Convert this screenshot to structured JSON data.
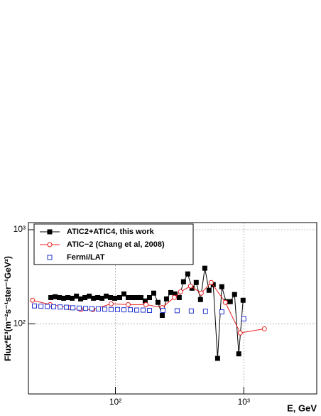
{
  "chart_data": {
    "type": "line",
    "x_label": "E, GeV",
    "y_label": "Flux*E³(m⁻²s⁻¹ster⁻¹GeV²)",
    "log_x": true,
    "log_y": true,
    "grid": true,
    "legend_position": "upper-left",
    "xlim": [
      21,
      3700
    ],
    "ylim": [
      18,
      1190
    ],
    "xticks": [
      {
        "value": 100,
        "label": "10²"
      },
      {
        "value": 1000,
        "label": "10³"
      }
    ],
    "yticks": [
      {
        "value": 100,
        "label": "10²"
      },
      {
        "value": 1000,
        "label": "10³"
      }
    ],
    "series": [
      {
        "name": "ATIC2+ATIC4, this work",
        "color": "#000000",
        "marker": "filled-square",
        "connect": true,
        "x": [
          31.4,
          33.9,
          36.6,
          39.5,
          42.6,
          46.0,
          49.7,
          53.6,
          57.9,
          62.5,
          67.5,
          72.8,
          78.6,
          84.8,
          91.5,
          98.8,
          107.9,
          116.5,
          125.7,
          135.7,
          146.5,
          158.1,
          170.6,
          184.2,
          198.8,
          214.5,
          231.6,
          250,
          270,
          291,
          314,
          339,
          366,
          395,
          426,
          460,
          497,
          536,
          578,
          625,
          674,
          728,
          785,
          847,
          914,
          987
        ],
        "values": [
          190,
          194,
          190,
          187,
          190,
          187,
          197,
          184,
          190,
          197,
          187,
          190,
          187,
          197,
          190,
          187,
          190,
          208,
          190,
          190,
          190,
          190,
          175,
          190,
          212,
          169,
          123,
          184,
          215,
          208,
          190,
          280,
          339,
          239,
          275,
          181,
          390,
          227,
          261,
          43,
          248,
          172,
          172,
          205,
          48,
          178
        ]
      },
      {
        "name": "ATIC−2 (Chang et al, 2008)",
        "color": "#e8201e",
        "marker": "open-circle",
        "connect": true,
        "x": [
          22.6,
          31.0,
          43.2,
          53.6,
          66.6,
          92.7,
          125.7,
          172.9,
          231.6,
          287.5,
          322,
          385,
          466,
          557,
          718,
          938,
          1446
        ],
        "values": [
          178,
          160,
          149,
          142,
          142,
          163,
          160,
          160,
          149,
          191,
          219,
          252,
          212,
          275,
          169,
          80,
          88.5
        ]
      },
      {
        "name": "Fermi/LAT",
        "color": "#2233cc",
        "marker": "open-square",
        "connect": false,
        "x": [
          23.4,
          26.3,
          29.5,
          33.0,
          37.1,
          41.5,
          46.6,
          52.2,
          58.6,
          65.6,
          73.6,
          82.6,
          92.6,
          103.9,
          116.5,
          130.6,
          146.5,
          164.2,
          184.2,
          234.5,
          302.5,
          390,
          503,
          674,
          1000
        ],
        "values": [
          155,
          154,
          153,
          152,
          151,
          150,
          148,
          147,
          146,
          145,
          144,
          143,
          142,
          142,
          141,
          141,
          140,
          140,
          139,
          139,
          138,
          137,
          136,
          134,
          113
        ]
      }
    ]
  }
}
